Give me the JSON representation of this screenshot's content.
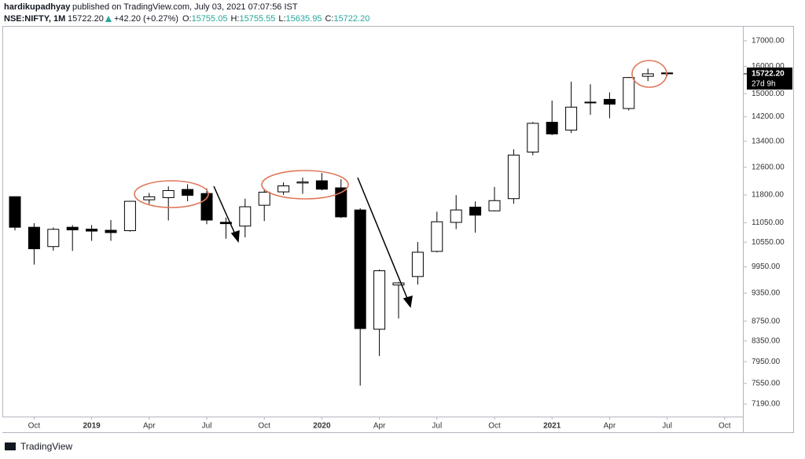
{
  "header": {
    "author": "hardikupadhyay",
    "published": "published on TradingView.com, July 03, 2021 07:07:56 IST",
    "symbol": "NSE:NIFTY, 1M",
    "last": "15722.20",
    "change": "+42.20 (+0.27%)",
    "ohlc": [
      {
        "label": "O:",
        "value": "15755.05"
      },
      {
        "label": "H:",
        "value": "15755.55"
      },
      {
        "label": "L:",
        "value": "15635.95"
      },
      {
        "label": "C:",
        "value": "15722.20"
      }
    ]
  },
  "chart_data": {
    "type": "candlestick",
    "log_scale": true,
    "up_color": "#ffffff",
    "down_color": "#000000",
    "categories": [
      null,
      "Oct",
      null,
      null,
      "2019",
      null,
      null,
      "Apr",
      null,
      null,
      "Jul",
      null,
      null,
      "Oct",
      null,
      null,
      "2020",
      null,
      null,
      "Apr",
      null,
      null,
      "Jul",
      null,
      null,
      "Oct",
      null,
      null,
      "2021",
      null,
      null,
      "Apr",
      null,
      null,
      "Jul",
      null,
      null,
      "Oct"
    ],
    "open": [
      11751,
      10930,
      10441,
      10930,
      10882,
      10852,
      10842,
      11665,
      11725,
      11954,
      11840,
      11060,
      10961,
      11515,
      11886,
      12137,
      12202,
      12000,
      11387,
      8584,
      9533,
      9726,
      10323,
      11057,
      11464,
      11364,
      11697,
      13062,
      14018,
      13758,
      14702,
      14798,
      14481,
      15629,
      15755,
      null,
      null,
      null
    ],
    "high": [
      11751,
      11035,
      10922,
      10985,
      10987,
      11118,
      11630,
      11856,
      12041,
      12103,
      11981,
      11182,
      11695,
      11945,
      12159,
      12294,
      12430,
      12247,
      11434,
      9889,
      9598,
      10554,
      11341,
      11794,
      11618,
      12025,
      13145,
      14024,
      14754,
      15432,
      15337,
      15045,
      15606,
      15916,
      15755,
      null,
      null,
      null
    ],
    "low": [
      10850,
      10005,
      10341,
      10334,
      10584,
      10586,
      10817,
      11549,
      11108,
      11626,
      11010,
      10637,
      10670,
      11090,
      11802,
      11832,
      11929,
      11175,
      7511,
      8055,
      8806,
      9544,
      10299,
      10882,
      10790,
      11347,
      11557,
      12962,
      13597,
      13662,
      14265,
      14151,
      14417,
      15450,
      15636,
      null,
      null,
      null
    ],
    "close": [
      10930,
      10387,
      10877,
      10863,
      10831,
      10793,
      11624,
      11748,
      11923,
      11789,
      11118,
      11023,
      11474,
      11877,
      12056,
      12168,
      11962,
      11202,
      8598,
      9860,
      9580,
      10302,
      11073,
      11388,
      11248,
      11642,
      12969,
      13982,
      13635,
      14529,
      14691,
      14631,
      15583,
      15722,
      15722,
      null,
      null,
      null
    ],
    "ylim": [
      6980,
      17610
    ],
    "yticks": [
      {
        "value": 17000,
        "label": "17000.00"
      },
      {
        "value": 16000,
        "label": "16000.00"
      },
      {
        "value": 15000,
        "label": "15000.00"
      },
      {
        "value": 14200,
        "label": "14200.00"
      },
      {
        "value": 13400,
        "label": "13400.00"
      },
      {
        "value": 12600,
        "label": "12600.00"
      },
      {
        "value": 11800,
        "label": "11800.00"
      },
      {
        "value": 11050,
        "label": "11050.00"
      },
      {
        "value": 10550,
        "label": "10550.00"
      },
      {
        "value": 9950,
        "label": "9950.00"
      },
      {
        "value": 9350,
        "label": "9350.00"
      },
      {
        "value": 8750,
        "label": "8750.00"
      },
      {
        "value": 8350,
        "label": "8350.00"
      },
      {
        "value": 7950,
        "label": "7950.00"
      },
      {
        "value": 7550,
        "label": "7550.00"
      },
      {
        "value": 7190,
        "label": "7190.00"
      }
    ],
    "price_tag": "15722.20",
    "countdown": "27d 9h"
  },
  "footer": "TradingView"
}
